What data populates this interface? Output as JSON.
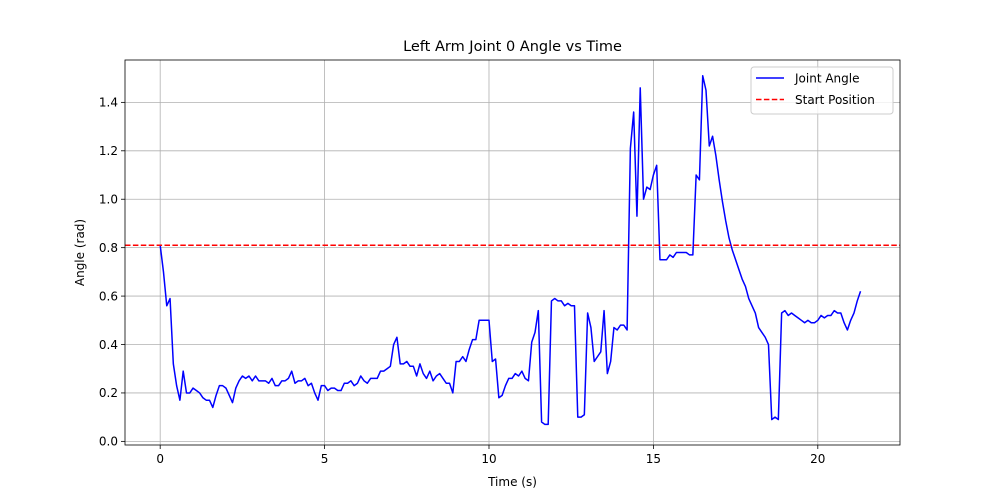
{
  "chart_data": {
    "type": "line",
    "title": "Left Arm Joint 0 Angle vs Time",
    "xlabel": "Time (s)",
    "ylabel": "Angle (rad)",
    "xlim": [
      -1.07,
      22.5
    ],
    "ylim": [
      -0.015,
      1.575
    ],
    "xticks": [
      0,
      5,
      10,
      15,
      20
    ],
    "yticks": [
      0.0,
      0.2,
      0.4,
      0.6,
      0.8,
      1.0,
      1.2,
      1.4
    ],
    "grid": true,
    "legend_position": "top-right",
    "series": [
      {
        "name": "Joint Angle",
        "color": "#0000ff",
        "style": "solid",
        "x": [
          0,
          0.1,
          0.2,
          0.3,
          0.4,
          0.5,
          0.6,
          0.7,
          0.8,
          0.9,
          1.0,
          1.1,
          1.2,
          1.3,
          1.4,
          1.5,
          1.6,
          1.7,
          1.8,
          1.9,
          2.0,
          2.1,
          2.2,
          2.3,
          2.4,
          2.5,
          2.6,
          2.7,
          2.8,
          2.9,
          3.0,
          3.1,
          3.2,
          3.3,
          3.4,
          3.5,
          3.6,
          3.7,
          3.8,
          3.9,
          4.0,
          4.1,
          4.2,
          4.3,
          4.4,
          4.5,
          4.6,
          4.7,
          4.8,
          4.9,
          5.0,
          5.1,
          5.2,
          5.3,
          5.4,
          5.5,
          5.6,
          5.7,
          5.8,
          5.9,
          6.0,
          6.1,
          6.2,
          6.3,
          6.4,
          6.5,
          6.6,
          6.7,
          6.8,
          6.9,
          7.0,
          7.1,
          7.2,
          7.3,
          7.4,
          7.5,
          7.6,
          7.7,
          7.8,
          7.9,
          8.0,
          8.1,
          8.2,
          8.3,
          8.4,
          8.5,
          8.6,
          8.7,
          8.8,
          8.9,
          9.0,
          9.1,
          9.2,
          9.3,
          9.4,
          9.5,
          9.6,
          9.7,
          9.8,
          9.9,
          10.0,
          10.1,
          10.2,
          10.3,
          10.4,
          10.5,
          10.6,
          10.7,
          10.8,
          10.9,
          11.0,
          11.1,
          11.2,
          11.3,
          11.4,
          11.5,
          11.6,
          11.7,
          11.8,
          11.9,
          12.0,
          12.1,
          12.2,
          12.3,
          12.4,
          12.5,
          12.6,
          12.7,
          12.8,
          12.9,
          13.0,
          13.1,
          13.2,
          13.3,
          13.4,
          13.5,
          13.6,
          13.7,
          13.8,
          13.9,
          14.0,
          14.1,
          14.2,
          14.3,
          14.4,
          14.5,
          14.6,
          14.7,
          14.8,
          14.9,
          15.0,
          15.1,
          15.2,
          15.3,
          15.4,
          15.5,
          15.6,
          15.7,
          15.8,
          15.9,
          16.0,
          16.1,
          16.2,
          16.3,
          16.4,
          16.5,
          16.6,
          16.7,
          16.8,
          16.9,
          17.0,
          17.1,
          17.2,
          17.3,
          17.4,
          17.5,
          17.6,
          17.7,
          17.8,
          17.9,
          18.0,
          18.1,
          18.2,
          18.3,
          18.4,
          18.5,
          18.6,
          18.7,
          18.8,
          18.9,
          19.0,
          19.1,
          19.2,
          19.3,
          19.4,
          19.5,
          19.6,
          19.7,
          19.8,
          19.9,
          20.0,
          20.1,
          20.2,
          20.3,
          20.4,
          20.5,
          20.6,
          20.7,
          20.8,
          20.9,
          21.0,
          21.1,
          21.2,
          21.3
        ],
        "y": [
          0.81,
          0.7,
          0.56,
          0.59,
          0.32,
          0.23,
          0.17,
          0.29,
          0.2,
          0.2,
          0.22,
          0.21,
          0.2,
          0.18,
          0.17,
          0.17,
          0.14,
          0.19,
          0.23,
          0.23,
          0.22,
          0.19,
          0.16,
          0.22,
          0.25,
          0.27,
          0.26,
          0.27,
          0.25,
          0.27,
          0.25,
          0.25,
          0.25,
          0.24,
          0.26,
          0.23,
          0.23,
          0.25,
          0.25,
          0.26,
          0.29,
          0.24,
          0.25,
          0.25,
          0.26,
          0.23,
          0.24,
          0.2,
          0.17,
          0.23,
          0.23,
          0.21,
          0.22,
          0.22,
          0.21,
          0.21,
          0.24,
          0.24,
          0.25,
          0.23,
          0.24,
          0.27,
          0.25,
          0.24,
          0.26,
          0.26,
          0.26,
          0.29,
          0.29,
          0.3,
          0.31,
          0.4,
          0.43,
          0.32,
          0.32,
          0.33,
          0.31,
          0.31,
          0.27,
          0.32,
          0.28,
          0.26,
          0.29,
          0.25,
          0.27,
          0.28,
          0.26,
          0.24,
          0.24,
          0.2,
          0.33,
          0.33,
          0.35,
          0.33,
          0.38,
          0.42,
          0.42,
          0.5,
          0.5,
          0.5,
          0.5,
          0.33,
          0.34,
          0.18,
          0.19,
          0.23,
          0.26,
          0.26,
          0.28,
          0.27,
          0.29,
          0.26,
          0.25,
          0.41,
          0.45,
          0.54,
          0.08,
          0.07,
          0.07,
          0.58,
          0.59,
          0.58,
          0.58,
          0.56,
          0.57,
          0.56,
          0.56,
          0.1,
          0.1,
          0.11,
          0.53,
          0.47,
          0.33,
          0.35,
          0.37,
          0.54,
          0.28,
          0.33,
          0.47,
          0.46,
          0.48,
          0.48,
          0.46,
          1.21,
          1.36,
          0.93,
          1.46,
          1.0,
          1.05,
          1.04,
          1.1,
          1.14,
          0.75,
          0.75,
          0.75,
          0.77,
          0.76,
          0.78,
          0.78,
          0.78,
          0.78,
          0.77,
          0.77,
          1.1,
          1.08,
          1.51,
          1.45,
          1.22,
          1.26,
          1.18,
          1.08,
          0.99,
          0.91,
          0.84,
          0.79,
          0.75,
          0.71,
          0.67,
          0.64,
          0.59,
          0.56,
          0.53,
          0.47,
          0.45,
          0.43,
          0.4,
          0.09,
          0.1,
          0.09,
          0.53,
          0.54,
          0.52,
          0.53,
          0.52,
          0.51,
          0.5,
          0.49,
          0.5,
          0.49,
          0.49,
          0.5,
          0.52,
          0.51,
          0.52,
          0.52,
          0.54,
          0.53,
          0.53,
          0.49,
          0.46,
          0.5,
          0.53,
          0.58,
          0.62
        ]
      },
      {
        "name": "Start Position",
        "color": "#ff0000",
        "style": "dashed",
        "y_constant": 0.81
      }
    ]
  }
}
